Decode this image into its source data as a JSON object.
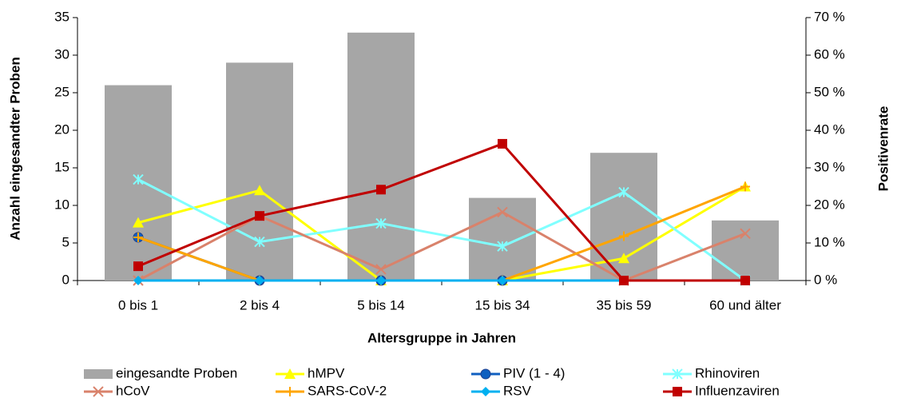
{
  "chart_data": {
    "type": "combo",
    "categories": [
      "0 bis 1",
      "2 bis 4",
      "5 bis 14",
      "15 bis 34",
      "35 bis 59",
      "60 und älter"
    ],
    "x_label": "Altersgruppe in Jahren",
    "y_label": "Anzahl eingesandter Proben",
    "y2_label": "Positivenrate",
    "ylim": [
      0,
      35
    ],
    "yticks": [
      0,
      5,
      10,
      15,
      20,
      25,
      30,
      35
    ],
    "y2lim": [
      0,
      70
    ],
    "y2ticks": [
      {
        "value": 0,
        "label": "0 %"
      },
      {
        "value": 10,
        "label": "10 %"
      },
      {
        "value": 20,
        "label": "20 %"
      },
      {
        "value": 30,
        "label": "30 %"
      },
      {
        "value": 40,
        "label": "40 %"
      },
      {
        "value": 50,
        "label": "50 %"
      },
      {
        "value": 60,
        "label": "60 %"
      },
      {
        "value": 70,
        "label": "70 %"
      }
    ],
    "grid": false,
    "legend": "bottom",
    "series": [
      {
        "name": "eingesandte Proben",
        "type": "bar",
        "color": "#a6a6a6",
        "values": [
          26,
          29,
          33,
          11,
          17,
          8
        ]
      },
      {
        "name": "hMPV",
        "type": "line",
        "axis": "y2",
        "marker": "triangle",
        "color": "#ffff00",
        "values": [
          15.4,
          24,
          0,
          0,
          5.9,
          25
        ]
      },
      {
        "name": "PIV (1 - 4)",
        "type": "line",
        "axis": "y2",
        "marker": "circle",
        "color": "#0f5fc0",
        "values": [
          11.5,
          0,
          0,
          0,
          null,
          null
        ]
      },
      {
        "name": "Rhinoviren",
        "type": "line",
        "axis": "y2",
        "marker": "star",
        "color": "#80ffff",
        "values": [
          26.9,
          10.3,
          15.2,
          9.1,
          23.5,
          0
        ]
      },
      {
        "name": "hCoV",
        "type": "line",
        "axis": "y2",
        "marker": "x",
        "color": "#d9826b",
        "values": [
          0,
          17.2,
          3,
          18.2,
          0,
          12.5
        ]
      },
      {
        "name": "SARS-CoV-2",
        "type": "line",
        "axis": "y2",
        "marker": "plus",
        "color": "#ffa500",
        "values": [
          11.5,
          0,
          0,
          0,
          11.8,
          25
        ]
      },
      {
        "name": "RSV",
        "type": "line",
        "axis": "y2",
        "marker": "diamond",
        "color": "#00b0f0",
        "values": [
          0,
          0,
          0,
          0,
          0,
          null
        ]
      },
      {
        "name": "Influenzaviren",
        "type": "line",
        "axis": "y2",
        "marker": "square",
        "color": "#c00000",
        "values": [
          3.8,
          17.2,
          24.2,
          36.4,
          0,
          0
        ]
      }
    ]
  }
}
